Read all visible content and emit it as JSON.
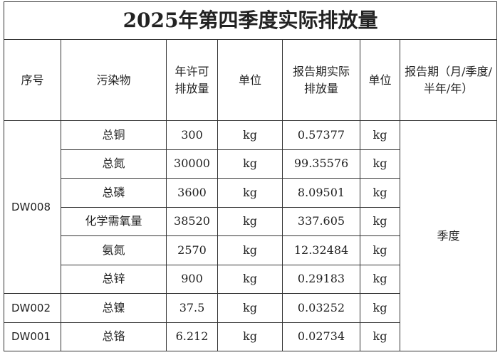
{
  "title": "2025年第四季度实际排放量",
  "headers": [
    "序号",
    "污染物",
    "年许可\n排放量",
    "单位",
    "报告期实际\n排放量",
    "单位",
    "报告期（月/季度/半年/年）"
  ],
  "period": "季度",
  "groups": [
    {
      "id": "DW008",
      "rows": [
        [
          "总铜",
          "300",
          "kg",
          "0.57377",
          "kg"
        ],
        [
          "总氮",
          "30000",
          "kg",
          "99.35576",
          "kg"
        ],
        [
          "总磷",
          "3600",
          "kg",
          "8.09501",
          "kg"
        ],
        [
          "化学需氧量",
          "38520",
          "kg",
          "337.605",
          "kg"
        ],
        [
          "氨氮",
          "2570",
          "kg",
          "12.32484",
          "kg"
        ],
        [
          "总锌",
          "900",
          "kg",
          "0.29183",
          "kg"
        ]
      ]
    },
    {
      "id": "DW002",
      "rows": [
        [
          "总镍",
          "37.5",
          "kg",
          "0.03252",
          "kg"
        ]
      ]
    },
    {
      "id": "DW001",
      "rows": [
        [
          "总铬",
          "6.212",
          "kg",
          "0.02734",
          "kg"
        ]
      ]
    }
  ]
}
